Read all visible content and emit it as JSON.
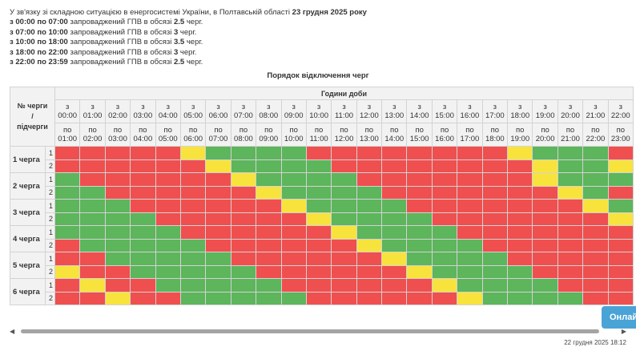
{
  "header": {
    "intro": "У зв'язку зі складною ситуацією в енергосистемі України, в Полтавській області",
    "date": "23 грудня 2025 року",
    "lines": [
      {
        "from_word": "з",
        "from": "00:00",
        "to_word": "по",
        "to": "07:00",
        "text": "запроваджений ГПВ в обсязі",
        "amount": "2.5",
        "unit": "черг."
      },
      {
        "from_word": "з",
        "from": "07:00",
        "to_word": "по",
        "to": "10:00",
        "text": "запроваджений ГПВ в обсязі",
        "amount": "3",
        "unit": "черг."
      },
      {
        "from_word": "з",
        "from": "10:00",
        "to_word": "по",
        "to": "18:00",
        "text": "запроваджений ГПВ в обсязі",
        "amount": "3.5",
        "unit": "черг."
      },
      {
        "from_word": "з",
        "from": "18:00",
        "to_word": "по",
        "to": "22:00",
        "text": "запроваджений ГПВ в обсязі",
        "amount": "3",
        "unit": "черг."
      },
      {
        "from_word": "з",
        "from": "22:00",
        "to_word": "по",
        "to": "23:59",
        "text": "запроваджений ГПВ в обсязі",
        "amount": "2.5",
        "unit": "черг."
      }
    ]
  },
  "table": {
    "caption": "Порядок відключення черг",
    "corner_label": [
      "№ черги",
      "/",
      "підчерги"
    ],
    "hours_label": "Години доби",
    "from_word": "з",
    "to_word": "по",
    "hours_from": [
      "00:00",
      "01:00",
      "02:00",
      "03:00",
      "04:00",
      "05:00",
      "06:00",
      "07:00",
      "08:00",
      "09:00",
      "10:00",
      "11:00",
      "12:00",
      "13:00",
      "14:00",
      "15:00",
      "16:00",
      "17:00",
      "18:00",
      "19:00",
      "20:00",
      "21:00",
      "22:00"
    ],
    "hours_to": [
      "01:00",
      "02:00",
      "03:00",
      "04:00",
      "05:00",
      "06:00",
      "07:00",
      "08:00",
      "09:00",
      "10:00",
      "11:00",
      "12:00",
      "13:00",
      "14:00",
      "15:00",
      "16:00",
      "17:00",
      "18:00",
      "19:00",
      "20:00",
      "21:00",
      "22:00",
      "23:00"
    ],
    "status_colors": {
      "on": "#5db55c",
      "off": "#ef4f4f",
      "maybe": "#f8e33d"
    },
    "groups": [
      {
        "label": "1 черга",
        "subgroups": [
          {
            "label": "1",
            "cells": [
              "off",
              "off",
              "off",
              "off",
              "off",
              "maybe",
              "on",
              "on",
              "on",
              "on",
              "off",
              "off",
              "off",
              "off",
              "off",
              "off",
              "off",
              "off",
              "maybe",
              "on",
              "on",
              "on",
              "off"
            ]
          },
          {
            "label": "2",
            "cells": [
              "off",
              "off",
              "off",
              "off",
              "off",
              "off",
              "maybe",
              "on",
              "on",
              "on",
              "on",
              "off",
              "off",
              "off",
              "off",
              "off",
              "off",
              "off",
              "off",
              "maybe",
              "on",
              "on",
              "maybe"
            ]
          }
        ]
      },
      {
        "label": "2 черга",
        "subgroups": [
          {
            "label": "1",
            "cells": [
              "on",
              "off",
              "off",
              "off",
              "off",
              "off",
              "off",
              "maybe",
              "on",
              "on",
              "on",
              "on",
              "off",
              "off",
              "off",
              "off",
              "off",
              "off",
              "off",
              "maybe",
              "on",
              "on",
              "on"
            ]
          },
          {
            "label": "2",
            "cells": [
              "on",
              "on",
              "off",
              "off",
              "off",
              "off",
              "off",
              "off",
              "maybe",
              "on",
              "on",
              "on",
              "on",
              "off",
              "off",
              "off",
              "off",
              "off",
              "off",
              "off",
              "maybe",
              "on",
              "off"
            ]
          }
        ]
      },
      {
        "label": "3 черга",
        "subgroups": [
          {
            "label": "1",
            "cells": [
              "on",
              "on",
              "on",
              "off",
              "off",
              "off",
              "off",
              "off",
              "off",
              "maybe",
              "on",
              "on",
              "on",
              "on",
              "off",
              "off",
              "off",
              "off",
              "off",
              "off",
              "off",
              "maybe",
              "on"
            ]
          },
          {
            "label": "2",
            "cells": [
              "on",
              "on",
              "on",
              "on",
              "off",
              "off",
              "off",
              "off",
              "off",
              "off",
              "maybe",
              "on",
              "on",
              "on",
              "on",
              "off",
              "off",
              "off",
              "off",
              "off",
              "off",
              "off",
              "maybe"
            ]
          }
        ]
      },
      {
        "label": "4 черга",
        "subgroups": [
          {
            "label": "1",
            "cells": [
              "on",
              "on",
              "on",
              "on",
              "on",
              "off",
              "off",
              "off",
              "off",
              "off",
              "off",
              "maybe",
              "on",
              "on",
              "on",
              "on",
              "off",
              "off",
              "off",
              "off",
              "off",
              "off",
              "off"
            ]
          },
          {
            "label": "2",
            "cells": [
              "off",
              "on",
              "on",
              "on",
              "on",
              "on",
              "off",
              "off",
              "off",
              "off",
              "off",
              "off",
              "maybe",
              "on",
              "on",
              "on",
              "on",
              "off",
              "off",
              "off",
              "off",
              "off",
              "off"
            ]
          }
        ]
      },
      {
        "label": "5 черга",
        "subgroups": [
          {
            "label": "1",
            "cells": [
              "off",
              "off",
              "on",
              "on",
              "on",
              "on",
              "on",
              "off",
              "off",
              "off",
              "off",
              "off",
              "off",
              "maybe",
              "on",
              "on",
              "on",
              "on",
              "off",
              "off",
              "off",
              "off",
              "off"
            ]
          },
          {
            "label": "2",
            "cells": [
              "maybe",
              "off",
              "off",
              "on",
              "on",
              "on",
              "on",
              "on",
              "off",
              "off",
              "off",
              "off",
              "off",
              "off",
              "maybe",
              "on",
              "on",
              "on",
              "on",
              "off",
              "off",
              "off",
              "off"
            ]
          }
        ]
      },
      {
        "label": "6 черга",
        "subgroups": [
          {
            "label": "1",
            "cells": [
              "off",
              "maybe",
              "off",
              "off",
              "on",
              "on",
              "on",
              "on",
              "on",
              "off",
              "off",
              "off",
              "off",
              "off",
              "off",
              "maybe",
              "on",
              "on",
              "on",
              "on",
              "off",
              "off",
              "off"
            ]
          },
          {
            "label": "2",
            "cells": [
              "off",
              "off",
              "maybe",
              "off",
              "off",
              "on",
              "on",
              "on",
              "on",
              "on",
              "off",
              "off",
              "off",
              "off",
              "off",
              "off",
              "maybe",
              "on",
              "on",
              "on",
              "on",
              "off",
              "off"
            ]
          }
        ]
      }
    ]
  },
  "scroll": {
    "left_arrow": "◀",
    "right_arrow": "▶"
  },
  "footer": {
    "timestamp": "22 грудня 2025 18:12"
  },
  "online_button": {
    "label": "Онлай"
  }
}
